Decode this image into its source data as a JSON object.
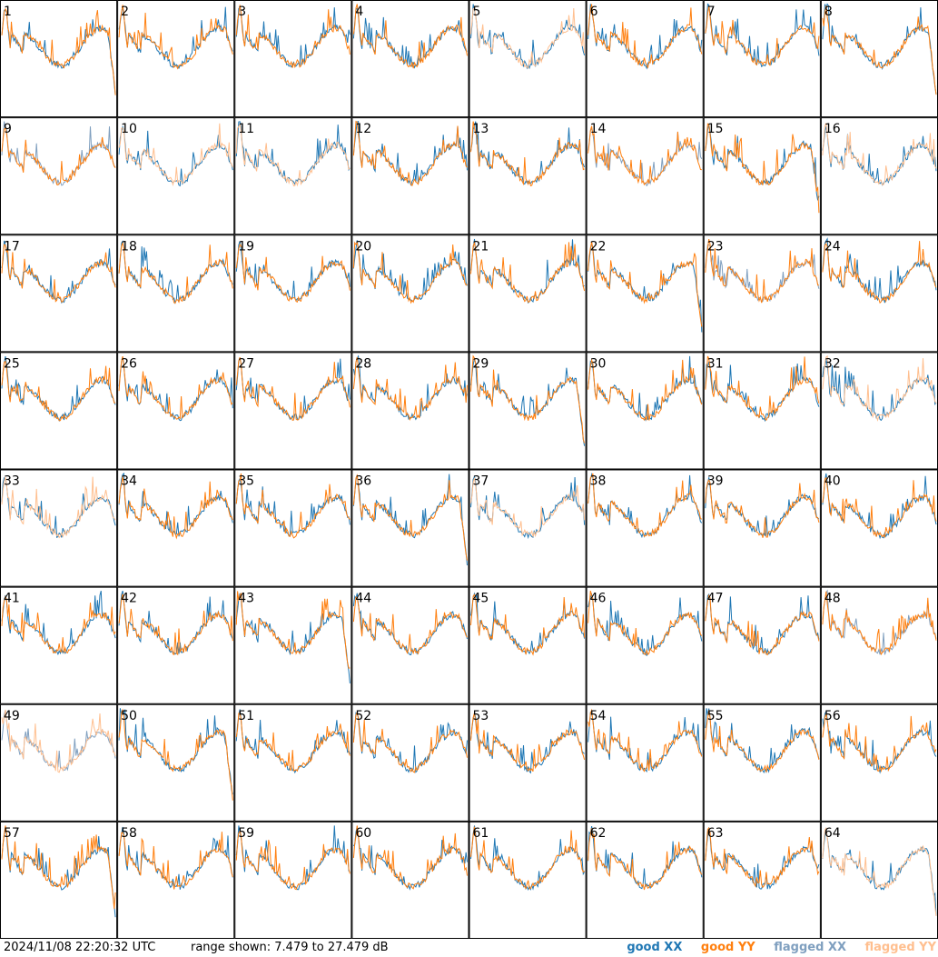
{
  "chart_data": {
    "type": "line",
    "layout": "8x8 small multiples, one panel per tile",
    "panels": [
      {
        "id": "1",
        "xx": "good",
        "yy": "good"
      },
      {
        "id": "2",
        "xx": "good",
        "yy": "good"
      },
      {
        "id": "3",
        "xx": "good",
        "yy": "good"
      },
      {
        "id": "4",
        "xx": "good",
        "yy": "good"
      },
      {
        "id": "5",
        "xx": "good",
        "yy": "flagged"
      },
      {
        "id": "6",
        "xx": "good",
        "yy": "good"
      },
      {
        "id": "7",
        "xx": "good",
        "yy": "good"
      },
      {
        "id": "8",
        "xx": "good",
        "yy": "good"
      },
      {
        "id": "9",
        "xx": "flagged",
        "yy": "good"
      },
      {
        "id": "10",
        "xx": "good",
        "yy": "flagged"
      },
      {
        "id": "11",
        "xx": "good",
        "yy": "flagged"
      },
      {
        "id": "12",
        "xx": "good",
        "yy": "good"
      },
      {
        "id": "13",
        "xx": "good",
        "yy": "good"
      },
      {
        "id": "14",
        "xx": "flagged",
        "yy": "good"
      },
      {
        "id": "15",
        "xx": "good",
        "yy": "good"
      },
      {
        "id": "16",
        "xx": "good",
        "yy": "flagged"
      },
      {
        "id": "17",
        "xx": "good",
        "yy": "good"
      },
      {
        "id": "18",
        "xx": "good",
        "yy": "good"
      },
      {
        "id": "19",
        "xx": "good",
        "yy": "good"
      },
      {
        "id": "20",
        "xx": "good",
        "yy": "good"
      },
      {
        "id": "21",
        "xx": "good",
        "yy": "good"
      },
      {
        "id": "22",
        "xx": "good",
        "yy": "good"
      },
      {
        "id": "23",
        "xx": "flagged",
        "yy": "good"
      },
      {
        "id": "24",
        "xx": "good",
        "yy": "good"
      },
      {
        "id": "25",
        "xx": "good",
        "yy": "good"
      },
      {
        "id": "26",
        "xx": "good",
        "yy": "good"
      },
      {
        "id": "27",
        "xx": "good",
        "yy": "good"
      },
      {
        "id": "28",
        "xx": "good",
        "yy": "good"
      },
      {
        "id": "29",
        "xx": "good",
        "yy": "good"
      },
      {
        "id": "30",
        "xx": "good",
        "yy": "good"
      },
      {
        "id": "31",
        "xx": "good",
        "yy": "good"
      },
      {
        "id": "32",
        "xx": "good",
        "yy": "flagged"
      },
      {
        "id": "33",
        "xx": "good",
        "yy": "flagged"
      },
      {
        "id": "34",
        "xx": "good",
        "yy": "good"
      },
      {
        "id": "35",
        "xx": "good",
        "yy": "good"
      },
      {
        "id": "36",
        "xx": "good",
        "yy": "good"
      },
      {
        "id": "37",
        "xx": "good",
        "yy": "flagged"
      },
      {
        "id": "38",
        "xx": "good",
        "yy": "good"
      },
      {
        "id": "39",
        "xx": "good",
        "yy": "good"
      },
      {
        "id": "40",
        "xx": "good",
        "yy": "good"
      },
      {
        "id": "41",
        "xx": "good",
        "yy": "good"
      },
      {
        "id": "42",
        "xx": "good",
        "yy": "good"
      },
      {
        "id": "43",
        "xx": "good",
        "yy": "good"
      },
      {
        "id": "44",
        "xx": "good",
        "yy": "good"
      },
      {
        "id": "45",
        "xx": "good",
        "yy": "good"
      },
      {
        "id": "46",
        "xx": "good",
        "yy": "good"
      },
      {
        "id": "47",
        "xx": "good",
        "yy": "good"
      },
      {
        "id": "48",
        "xx": "flagged",
        "yy": "good"
      },
      {
        "id": "49",
        "xx": "flagged",
        "yy": "flagged"
      },
      {
        "id": "50",
        "xx": "good",
        "yy": "good"
      },
      {
        "id": "51",
        "xx": "good",
        "yy": "good"
      },
      {
        "id": "52",
        "xx": "good",
        "yy": "good"
      },
      {
        "id": "53",
        "xx": "good",
        "yy": "good"
      },
      {
        "id": "54",
        "xx": "good",
        "yy": "good"
      },
      {
        "id": "55",
        "xx": "good",
        "yy": "good"
      },
      {
        "id": "56",
        "xx": "good",
        "yy": "good"
      },
      {
        "id": "57",
        "xx": "good",
        "yy": "good"
      },
      {
        "id": "58",
        "xx": "good",
        "yy": "good"
      },
      {
        "id": "59",
        "xx": "good",
        "yy": "good"
      },
      {
        "id": "60",
        "xx": "good",
        "yy": "good"
      },
      {
        "id": "61",
        "xx": "good",
        "yy": "good"
      },
      {
        "id": "62",
        "xx": "good",
        "yy": "good"
      },
      {
        "id": "63",
        "xx": "good",
        "yy": "good"
      },
      {
        "id": "64",
        "xx": "good",
        "yy": "flagged"
      }
    ],
    "series": [
      {
        "name": "good XX",
        "color": "#1f77b4"
      },
      {
        "name": "good YY",
        "color": "#ff7f0e"
      },
      {
        "name": "flagged XX",
        "color": "#7f9fbf"
      },
      {
        "name": "flagged YY",
        "color": "#ffbf8f"
      }
    ],
    "ylim": [
      7.479,
      27.479
    ],
    "yunit": "dB",
    "grid": false,
    "legend_placement": "bottom-right"
  },
  "footer": {
    "timestamp": "2024/11/08 22:20:32 UTC",
    "range_text": "range shown: 7.479 to 27.479 dB"
  },
  "legend": {
    "good_xx": "good XX",
    "good_yy": "good YY",
    "flagged_xx": "flagged XX",
    "flagged_yy": "flagged YY"
  },
  "colors": {
    "good_xx": "#1f77b4",
    "good_yy": "#ff7f0e",
    "flagged_xx": "#7f9fbf",
    "flagged_yy": "#ffbf8f"
  }
}
